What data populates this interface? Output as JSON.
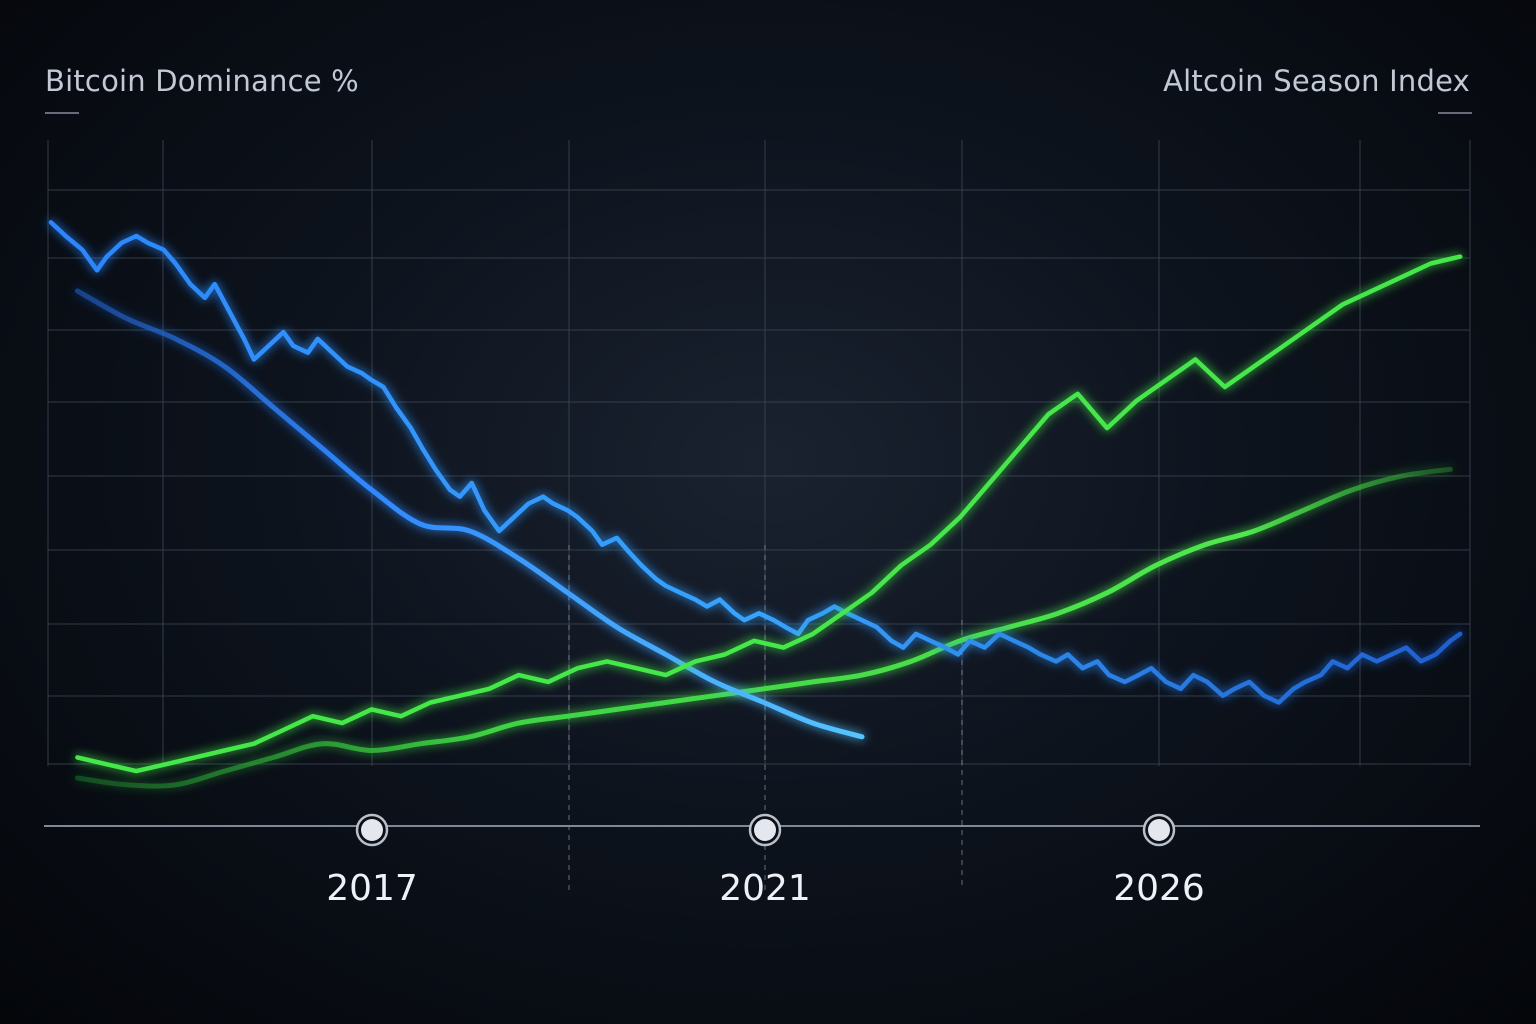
{
  "chart_data": {
    "type": "line",
    "left_axis_label": "Bitcoin Dominance %",
    "right_axis_label": "Altcoin Season Index",
    "x_ticks": [
      "2017",
      "2021",
      "2026"
    ],
    "x_tick_positions": [
      2017,
      2021,
      2026
    ],
    "x_range": [
      2013.7,
      2028.2
    ],
    "y_range": [
      0,
      100
    ],
    "grid": true,
    "colors": {
      "bitcoin": "#2f8dff",
      "bitcoin_trend": "#3aa2ff",
      "altcoin": "#45e84a",
      "altcoin_trend": "#4fe84e"
    },
    "series": [
      {
        "name": "Bitcoin Dominance %",
        "key": "btc",
        "x": [
          2013.73,
          2013.88,
          2014.05,
          2014.2,
          2014.3,
          2014.45,
          2014.6,
          2014.72,
          2014.88,
          2015.0,
          2015.15,
          2015.3,
          2015.4,
          2015.55,
          2015.7,
          2015.8,
          2015.95,
          2016.1,
          2016.2,
          2016.35,
          2016.45,
          2016.6,
          2016.75,
          2016.9,
          2017.0,
          2017.12,
          2017.25,
          2017.4,
          2017.52,
          2017.65,
          2017.8,
          2017.9,
          2018.02,
          2018.15,
          2018.3,
          2018.45,
          2018.6,
          2018.75,
          2018.85,
          2019.0,
          2019.1,
          2019.25,
          2019.35,
          2019.5,
          2019.62,
          2019.75,
          2019.9,
          2020.0,
          2020.15,
          2020.3,
          2020.42,
          2020.55,
          2020.7,
          2020.8,
          2020.95,
          2021.1,
          2021.22,
          2021.35,
          2021.45,
          2021.6,
          2021.72,
          2021.85,
          2022.0,
          2022.15,
          2022.3,
          2022.42,
          2022.55,
          2022.7,
          2022.85,
          2022.98,
          2023.1,
          2023.25,
          2023.4,
          2023.55,
          2023.7,
          2023.82,
          2023.98,
          2024.1,
          2024.25,
          2024.4,
          2024.52,
          2024.68,
          2024.82,
          2024.95,
          2025.1,
          2025.25,
          2025.38,
          2025.52,
          2025.68,
          2025.8,
          2025.95,
          2026.1,
          2026.25,
          2026.4,
          2026.52,
          2026.68,
          2026.8,
          2026.95,
          2027.1,
          2027.25,
          2027.4,
          2027.55,
          2027.7,
          2027.85,
          2028.0,
          2028.1
        ],
        "values": [
          88,
          86,
          84,
          81,
          83,
          85,
          86,
          85,
          84,
          82,
          79,
          77,
          79,
          75,
          71,
          68,
          70,
          72,
          70,
          69,
          71,
          69,
          67,
          66,
          65,
          64,
          61,
          58,
          55,
          52,
          49,
          48,
          50,
          46,
          43,
          45,
          47,
          48,
          47,
          46,
          45,
          43,
          41,
          42,
          40,
          38,
          36,
          35,
          34,
          33,
          32,
          33,
          31,
          30,
          31,
          30,
          29,
          28,
          30,
          31,
          32,
          31,
          30,
          29,
          27,
          26,
          28,
          27,
          26,
          25,
          27,
          26,
          28,
          27,
          26,
          25,
          24,
          25,
          23,
          24,
          22,
          21,
          22,
          23,
          21,
          20,
          22,
          21,
          19,
          20,
          21,
          19,
          18,
          20,
          21,
          22,
          24,
          23,
          25,
          24,
          25,
          26,
          24,
          25,
          27,
          28
        ]
      },
      {
        "name": "Altcoin Season Index",
        "key": "alt",
        "x": [
          2014.0,
          2014.3,
          2014.6,
          2014.9,
          2015.2,
          2015.5,
          2015.8,
          2016.1,
          2016.4,
          2016.7,
          2017.0,
          2017.3,
          2017.6,
          2017.9,
          2018.2,
          2018.5,
          2018.8,
          2019.1,
          2019.4,
          2019.7,
          2020.0,
          2020.3,
          2020.6,
          2020.9,
          2021.2,
          2021.5,
          2021.8,
          2022.1,
          2022.4,
          2022.7,
          2023.0,
          2023.3,
          2023.6,
          2023.9,
          2024.2,
          2024.5,
          2024.8,
          2025.1,
          2025.4,
          2025.7,
          2026.0,
          2026.3,
          2026.6,
          2026.9,
          2027.2,
          2027.5,
          2027.8,
          2028.1
        ],
        "values": [
          10,
          9,
          8,
          9,
          10,
          11,
          12,
          14,
          16,
          15,
          17,
          16,
          18,
          19,
          20,
          22,
          21,
          23,
          24,
          23,
          22,
          24,
          25,
          27,
          26,
          28,
          31,
          34,
          38,
          41,
          45,
          50,
          55,
          60,
          63,
          58,
          62,
          65,
          68,
          64,
          67,
          70,
          73,
          76,
          78,
          80,
          82,
          83
        ]
      }
    ],
    "trend_lines": [
      {
        "key": "btc_trend",
        "x": [
          2014.0,
          2014.5,
          2015.0,
          2015.5,
          2016.0,
          2016.5,
          2017.0,
          2017.5,
          2018.0,
          2018.5,
          2019.0,
          2019.5,
          2020.0,
          2020.5,
          2021.0,
          2021.5,
          2022.0
        ],
        "values": [
          78,
          74,
          71,
          67,
          61,
          55,
          49,
          44,
          43,
          39,
          34,
          29,
          25,
          21,
          18,
          15,
          13
        ]
      },
      {
        "key": "alt_trend",
        "x": [
          2014.0,
          2014.5,
          2015.0,
          2015.5,
          2016.0,
          2016.5,
          2017.0,
          2017.5,
          2018.0,
          2018.5,
          2019.0,
          2019.5,
          2020.0,
          2020.5,
          2021.0,
          2021.5,
          2022.0,
          2022.5,
          2023.0,
          2023.5,
          2024.0,
          2024.5,
          2025.0,
          2025.5,
          2026.0,
          2026.5,
          2027.0,
          2027.5,
          2028.0
        ],
        "values": [
          7,
          6,
          6,
          8,
          10,
          12,
          11,
          12,
          13,
          15,
          16,
          17,
          18,
          19,
          20,
          21,
          22,
          24,
          27,
          29,
          31,
          34,
          38,
          41,
          43,
          46,
          49,
          51,
          52
        ]
      }
    ]
  }
}
